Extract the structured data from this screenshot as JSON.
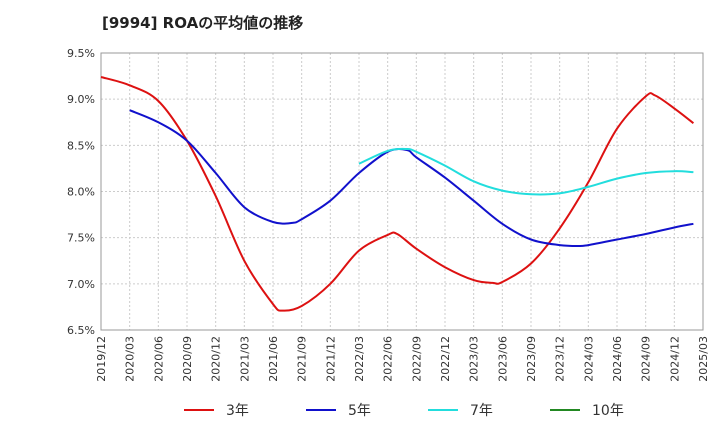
{
  "chart_data": {
    "type": "line",
    "title": "[9994]  ROAの平均値の推移",
    "y_ticks": [
      "9.5%",
      "9.0%",
      "8.5%",
      "8.0%",
      "7.5%",
      "7.0%",
      "6.5%"
    ],
    "ylim": [
      6.5,
      9.5
    ],
    "x_ticks": [
      "2019/12",
      "2020/03",
      "2020/06",
      "2020/09",
      "2020/12",
      "2021/03",
      "2021/06",
      "2021/09",
      "2021/12",
      "2022/03",
      "2022/06",
      "2022/09",
      "2022/12",
      "2023/03",
      "2023/06",
      "2023/09",
      "2023/12",
      "2024/03",
      "2024/06",
      "2024/09",
      "2024/12",
      "2025/03"
    ],
    "grid": true,
    "legend_position": "bottom",
    "series": [
      {
        "name": "3年",
        "color": "#dd1111",
        "points": [
          [
            "2019/12",
            9.24
          ],
          [
            "2020/03",
            9.15
          ],
          [
            "2020/06",
            8.98
          ],
          [
            "2020/09",
            8.55
          ],
          [
            "2020/12",
            7.95
          ],
          [
            "2021/03",
            7.25
          ],
          [
            "2021/06",
            6.78
          ],
          [
            "2021/07",
            6.71
          ],
          [
            "2021/09",
            6.76
          ],
          [
            "2021/12",
            7.0
          ],
          [
            "2022/03",
            7.36
          ],
          [
            "2022/06",
            7.53
          ],
          [
            "2022/07",
            7.54
          ],
          [
            "2022/09",
            7.38
          ],
          [
            "2022/12",
            7.18
          ],
          [
            "2023/03",
            7.04
          ],
          [
            "2023/05",
            7.01
          ],
          [
            "2023/06",
            7.02
          ],
          [
            "2023/09",
            7.22
          ],
          [
            "2023/12",
            7.6
          ],
          [
            "2024/03",
            8.1
          ],
          [
            "2024/06",
            8.68
          ],
          [
            "2024/09",
            9.03
          ],
          [
            "2024/10",
            9.04
          ],
          [
            "2024/12",
            8.9
          ],
          [
            "2025/02",
            8.74
          ]
        ]
      },
      {
        "name": "5年",
        "color": "#1111cc",
        "points": [
          [
            "2020/03",
            8.88
          ],
          [
            "2020/06",
            8.75
          ],
          [
            "2020/09",
            8.55
          ],
          [
            "2020/12",
            8.2
          ],
          [
            "2021/03",
            7.83
          ],
          [
            "2021/06",
            7.67
          ],
          [
            "2021/08",
            7.66
          ],
          [
            "2021/09",
            7.7
          ],
          [
            "2021/12",
            7.9
          ],
          [
            "2022/03",
            8.2
          ],
          [
            "2022/06",
            8.43
          ],
          [
            "2022/08",
            8.45
          ],
          [
            "2022/09",
            8.37
          ],
          [
            "2022/12",
            8.15
          ],
          [
            "2023/03",
            7.9
          ],
          [
            "2023/06",
            7.65
          ],
          [
            "2023/09",
            7.48
          ],
          [
            "2023/12",
            7.42
          ],
          [
            "2024/02",
            7.41
          ],
          [
            "2024/03",
            7.42
          ],
          [
            "2024/06",
            7.48
          ],
          [
            "2024/09",
            7.54
          ],
          [
            "2024/12",
            7.61
          ],
          [
            "2025/02",
            7.65
          ]
        ]
      },
      {
        "name": "7年",
        "color": "#22dddd",
        "points": [
          [
            "2022/03",
            8.3
          ],
          [
            "2022/06",
            8.44
          ],
          [
            "2022/08",
            8.46
          ],
          [
            "2022/09",
            8.43
          ],
          [
            "2022/12",
            8.28
          ],
          [
            "2023/03",
            8.11
          ],
          [
            "2023/06",
            8.01
          ],
          [
            "2023/09",
            7.97
          ],
          [
            "2023/12",
            7.98
          ],
          [
            "2024/03",
            8.05
          ],
          [
            "2024/06",
            8.14
          ],
          [
            "2024/09",
            8.2
          ],
          [
            "2024/12",
            8.22
          ],
          [
            "2025/02",
            8.21
          ]
        ]
      },
      {
        "name": "10年",
        "color": "#228822",
        "points": []
      }
    ]
  }
}
